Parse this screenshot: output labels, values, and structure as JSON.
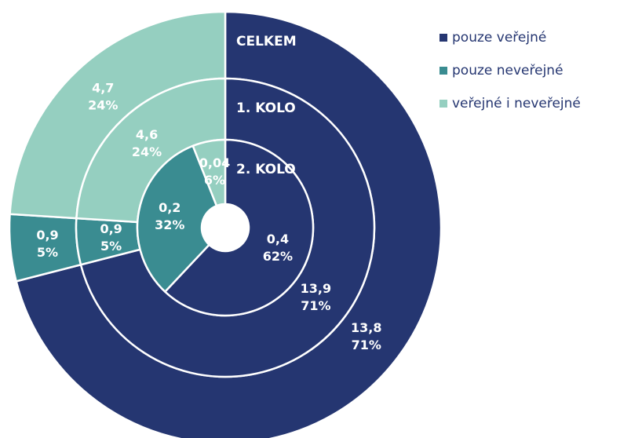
{
  "chart_data": {
    "type": "nested_donut",
    "series": [
      {
        "name": "pouze veřejné",
        "color": "#253671"
      },
      {
        "name": "pouze neveřejné",
        "color": "#3a8c91"
      },
      {
        "name": "veřejné i neveřejné",
        "color": "#95cfc0"
      }
    ],
    "rings": [
      {
        "name": "CELKEM",
        "values": [
          13.8,
          0.9,
          4.7
        ],
        "value_labels": [
          "13,8",
          "0,9",
          "4,7"
        ],
        "shares": [
          71,
          5,
          24
        ],
        "share_labels": [
          "71%",
          "5%",
          "24%"
        ]
      },
      {
        "name": "1. KOLO",
        "values": [
          13.9,
          0.9,
          4.6
        ],
        "value_labels": [
          "13,9",
          "0,9",
          "4,6"
        ],
        "shares": [
          71,
          5,
          24
        ],
        "share_labels": [
          "71%",
          "5%",
          "24%"
        ]
      },
      {
        "name": "2. KOLO",
        "values": [
          0.4,
          0.2,
          0.04
        ],
        "value_labels": [
          "0,4",
          "0,2",
          "0,04"
        ],
        "shares": [
          62,
          32,
          6
        ],
        "share_labels": [
          "62%",
          "32%",
          "6%"
        ]
      }
    ],
    "legend": "right"
  }
}
